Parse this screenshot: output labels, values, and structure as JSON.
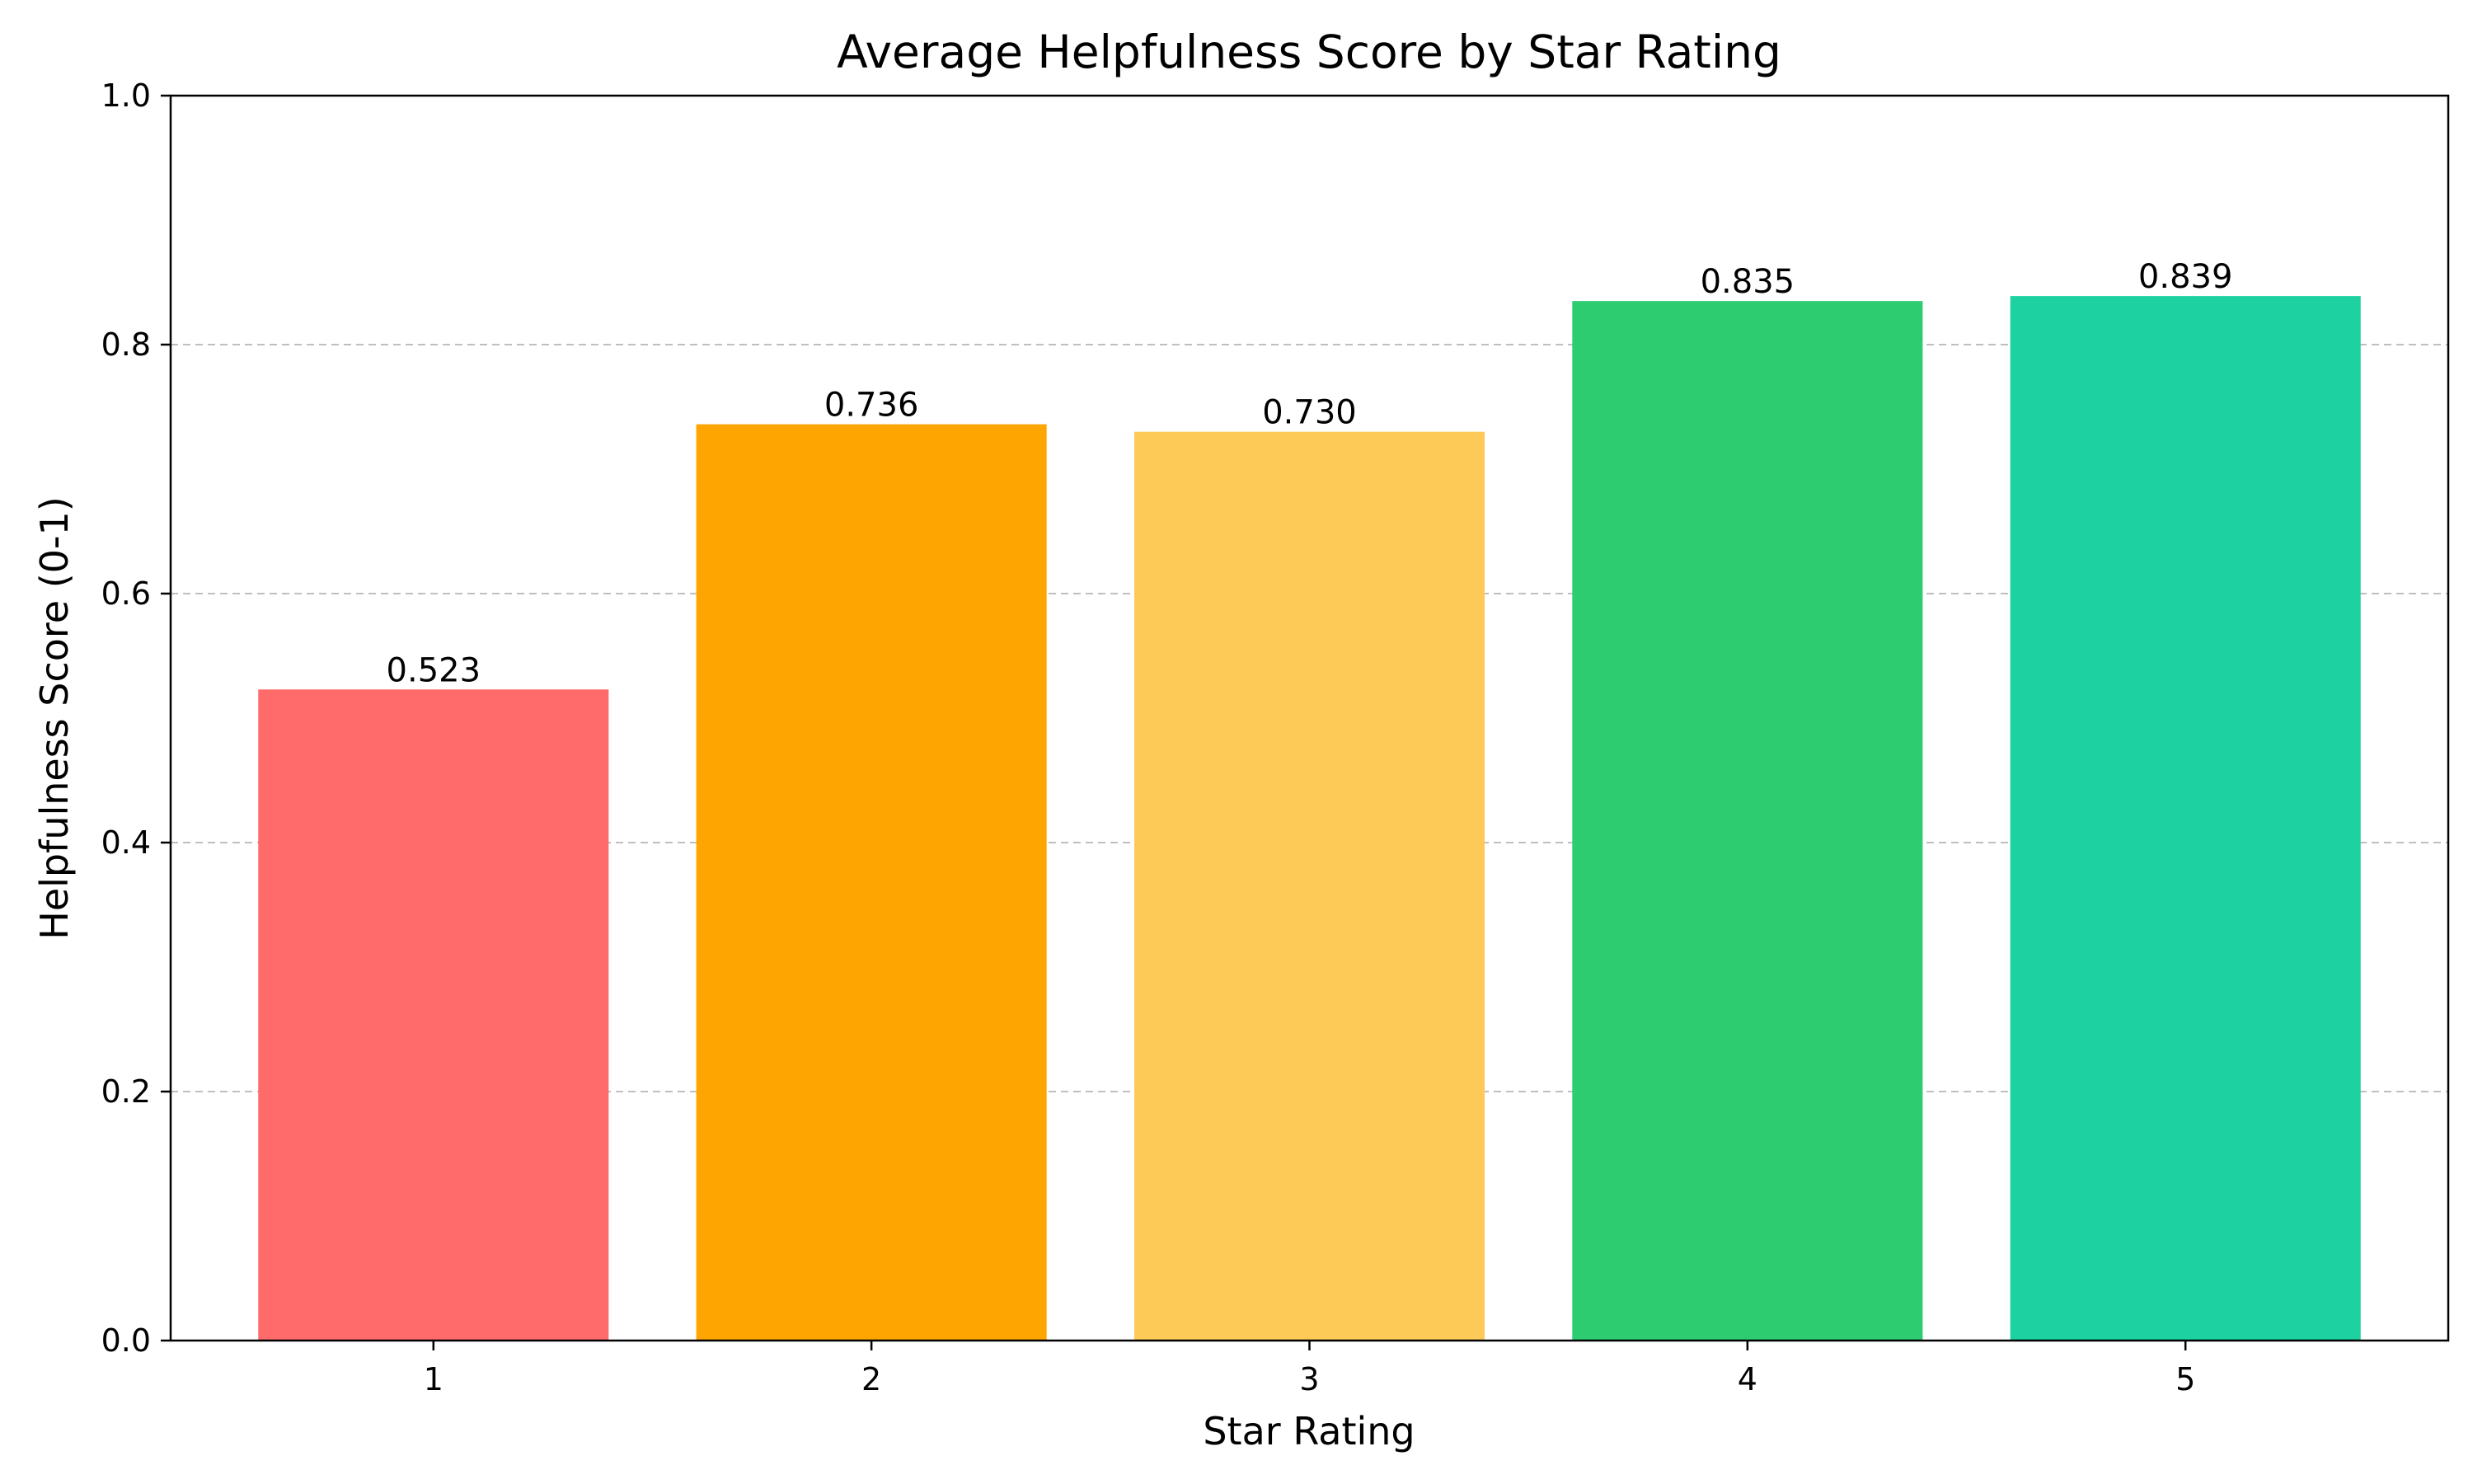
{
  "chart_data": {
    "type": "bar",
    "title": "Average Helpfulness Score by Star Rating",
    "xlabel": "Star Rating",
    "ylabel": "Helpfulness Score (0-1)",
    "categories": [
      "1",
      "2",
      "3",
      "4",
      "5"
    ],
    "values": [
      0.523,
      0.736,
      0.73,
      0.835,
      0.839
    ],
    "value_labels": [
      "0.523",
      "0.736",
      "0.730",
      "0.835",
      "0.839"
    ],
    "colors": [
      "#ff6b6b",
      "#ffa502",
      "#feca57",
      "#2ecc71",
      "#1dd1a1"
    ],
    "ylim": [
      0,
      1.0
    ],
    "yticks": [
      0.0,
      0.2,
      0.4,
      0.6,
      0.8,
      1.0
    ],
    "ytick_labels": [
      "0.0",
      "0.2",
      "0.4",
      "0.6",
      "0.8",
      "1.0"
    ],
    "grid": "horizontal-dashed",
    "legend": false
  }
}
